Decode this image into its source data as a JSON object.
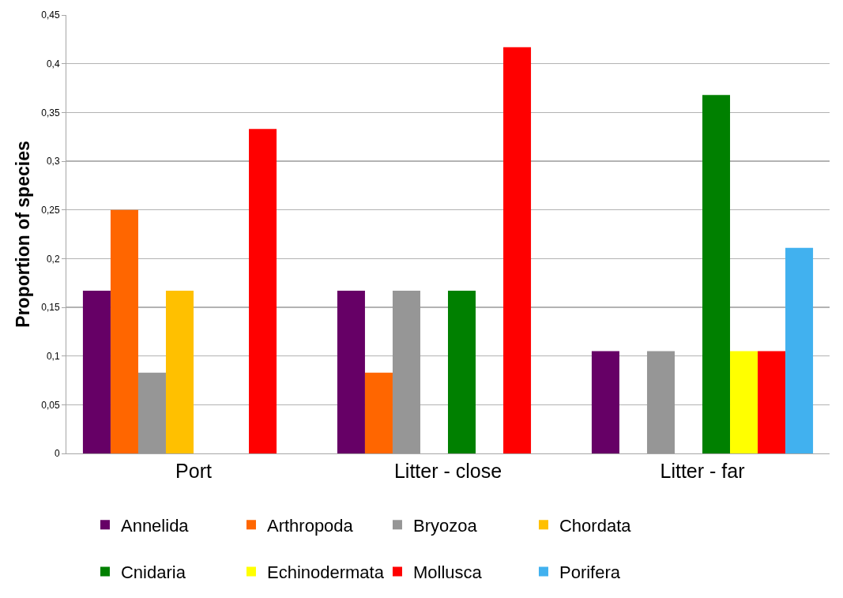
{
  "chart_data": {
    "type": "bar",
    "ylabel": "Proportion of species",
    "categories": [
      "Port",
      "Litter - close",
      "Litter - far"
    ],
    "series": [
      {
        "name": "Annelida",
        "color": "#660066",
        "values": [
          0.167,
          0.167,
          0.105
        ]
      },
      {
        "name": "Arthropoda",
        "color": "#ff6600",
        "values": [
          0.25,
          0.083,
          null
        ]
      },
      {
        "name": "Bryozoa",
        "color": "#969696",
        "values": [
          0.083,
          0.167,
          0.105
        ]
      },
      {
        "name": "Chordata",
        "color": "#ffc000",
        "values": [
          0.167,
          null,
          null
        ]
      },
      {
        "name": "Cnidaria",
        "color": "#008000",
        "values": [
          null,
          0.167,
          0.368
        ]
      },
      {
        "name": "Echinodermata",
        "color": "#ffff00",
        "values": [
          null,
          null,
          0.105
        ]
      },
      {
        "name": "Mollusca",
        "color": "#ff0000",
        "values": [
          0.333,
          0.417,
          0.105
        ]
      },
      {
        "name": "Porifera",
        "color": "#41b1ef",
        "values": [
          null,
          null,
          0.211
        ]
      }
    ],
    "ylim": [
      0,
      0.45
    ],
    "yticks": [
      0,
      {
        "value": 0.05,
        "label": "0,05"
      },
      {
        "value": 0.1,
        "label": "0,1"
      },
      {
        "value": 0.15,
        "label": "0,15"
      },
      {
        "value": 0.2,
        "label": "0,2"
      },
      {
        "value": 0.25,
        "label": "0,25"
      },
      {
        "value": 0.3,
        "label": "0,3"
      },
      {
        "value": 0.35,
        "label": "0,35"
      },
      {
        "value": 0.4,
        "label": "0,4"
      },
      {
        "value": 0.45,
        "label": "0,45"
      }
    ],
    "grid": "y",
    "legend": "bottom"
  }
}
